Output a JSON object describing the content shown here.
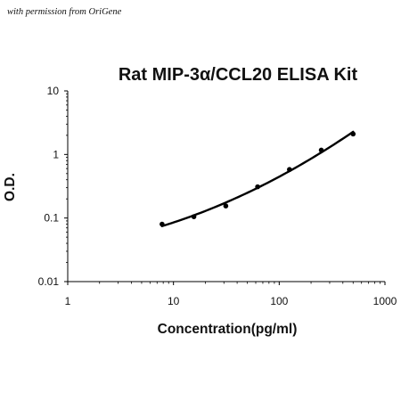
{
  "permission_note": "with permission from OriGene",
  "chart_data": {
    "type": "scatter",
    "title": "Rat MIP-3α/CCL20 ELISA Kit",
    "xlabel": "Concentration(pg/ml)",
    "ylabel": "O.D.",
    "xscale": "log",
    "yscale": "log",
    "xlim": [
      1,
      1000
    ],
    "ylim": [
      0.01,
      10
    ],
    "xticks": [
      1,
      10,
      100,
      1000
    ],
    "xtick_labels": [
      "1",
      "10",
      "100",
      "1000"
    ],
    "yticks": [
      0.01,
      0.1,
      1,
      10
    ],
    "ytick_labels": [
      "0.01",
      "0.1",
      "1",
      "10"
    ],
    "grid": false,
    "series": [
      {
        "x": [
          7.8,
          15.6,
          31.25,
          62.5,
          125,
          250,
          500
        ],
        "y": [
          0.08,
          0.105,
          0.155,
          0.31,
          0.58,
          1.17,
          2.1
        ],
        "color": "#000000",
        "fit_line": true
      }
    ]
  }
}
